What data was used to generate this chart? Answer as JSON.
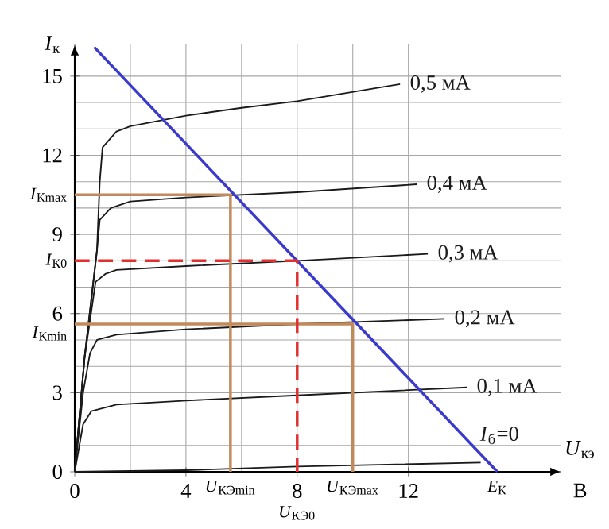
{
  "chart_data": {
    "type": "line",
    "xlabel": "*U*$_{кэ}$",
    "ylabel": "*I*$_{к}$",
    "xlim": [
      0,
      17.5
    ],
    "ylim": [
      0,
      16.2
    ],
    "xticks": [
      0,
      4,
      8,
      12
    ],
    "yticks": [
      0,
      3,
      6,
      9,
      12,
      15
    ],
    "grid": true,
    "marker": "none",
    "series": [
      {
        "name": "0,5 мA",
        "color": "#1a1a1a",
        "x": [
          0,
          0.35,
          0.8,
          0.9,
          1.0,
          1.5,
          2,
          4,
          6,
          8,
          11.7
        ],
        "values": [
          0,
          4.3,
          8.4,
          11,
          12.3,
          12.9,
          13.1,
          13.5,
          13.8,
          14.05,
          14.7
        ]
      },
      {
        "name": "0,4 мA",
        "color": "#1a1a1a",
        "x": [
          0,
          0.35,
          0.8,
          0.9,
          1.3,
          2,
          4,
          8,
          12.3
        ],
        "values": [
          0,
          4.3,
          8.4,
          9.55,
          10,
          10.25,
          10.4,
          10.6,
          10.9
        ]
      },
      {
        "name": "0,3 мA",
        "color": "#1a1a1a",
        "x": [
          0,
          0.35,
          0.75,
          1.1,
          1.5,
          4,
          8,
          12.7
        ],
        "values": [
          0,
          4.3,
          7.2,
          7.5,
          7.65,
          7.8,
          8,
          8.26
        ]
      },
      {
        "name": "0,2 мA",
        "color": "#1a1a1a",
        "x": [
          0,
          0.3,
          0.55,
          0.8,
          1.5,
          4,
          8,
          13.3
        ],
        "values": [
          0,
          3,
          4.5,
          5,
          5.2,
          5.4,
          5.6,
          5.8
        ]
      },
      {
        "name": "0,1 мA",
        "color": "#1a1a1a",
        "x": [
          0,
          0.3,
          0.6,
          1.5,
          4,
          8,
          14.1
        ],
        "values": [
          0,
          1.8,
          2.3,
          2.55,
          2.7,
          2.9,
          3.2
        ]
      },
      {
        "name": "*I*$_{б}$=0",
        "color": "#1a1a1a",
        "x": [
          0,
          4,
          8,
          14.6
        ],
        "values": [
          0,
          0.06,
          0.2,
          0.35
        ]
      },
      {
        "color": "#3a3acc",
        "x": [
          0.7,
          15.2
        ],
        "values": [
          16.1,
          0
        ]
      },
      {
        "color": "#c08a5c",
        "x": [
          0,
          5.6,
          5.6
        ],
        "values": [
          10.5,
          10.5,
          0
        ]
      },
      {
        "color": "#c08a5c",
        "x": [
          0,
          10,
          10
        ],
        "values": [
          5.6,
          5.6,
          0
        ]
      },
      {
        "color": "#e03030",
        "x": [
          0,
          8,
          8
        ],
        "values": [
          8,
          8,
          0
        ],
        "line_style": "dashed"
      }
    ],
    "annotations": [
      {
        "text": "*I*$_{Кmax}$",
        "x": 0,
        "y": 10.5
      },
      {
        "text": "*I*$_{К0}$",
        "x": 0,
        "y": 8
      },
      {
        "text": "*I*$_{Кmin}$",
        "x": 0,
        "y": 5.6
      },
      {
        "text": "*U*$_{КЭmin}$",
        "x": 5.6,
        "y": 0
      },
      {
        "text": "*U*$_{КЭ0}$",
        "x": 8,
        "y": 0
      },
      {
        "text": "*U*$_{КЭmax}$",
        "x": 10,
        "y": 0
      },
      {
        "text": "*E*$_{К}$",
        "x": 15.2,
        "y": 0
      },
      "В"
    ]
  }
}
